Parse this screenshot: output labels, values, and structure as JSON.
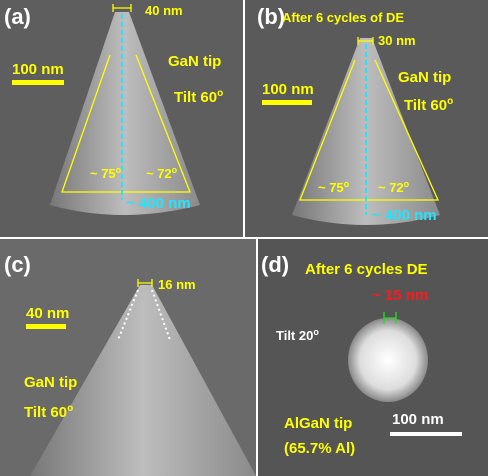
{
  "panels": [
    {
      "label": "(a)",
      "scale_bar": "100 nm",
      "tip_width": "40 nm",
      "material": "GaN tip",
      "tilt": {
        "text": "Tilt 60",
        "sup": "o"
      },
      "angle_left": {
        "text": "~ 75",
        "sup": "o"
      },
      "angle_right": {
        "text": "~ 72",
        "sup": "o"
      },
      "height": "~ 400 nm"
    },
    {
      "label": "(b)",
      "caption": "After 6 cycles of DE",
      "scale_bar": "100 nm",
      "tip_width": "30 nm",
      "material": "GaN tip",
      "tilt": {
        "text": "Tilt 60",
        "sup": "o"
      },
      "angle_left": {
        "text": "~ 75",
        "sup": "o"
      },
      "angle_right": {
        "text": "~ 72",
        "sup": "o"
      },
      "height": "~ 400 nm"
    },
    {
      "label": "(c)",
      "scale_bar": "40 nm",
      "tip_width": "16 nm",
      "material": "GaN tip",
      "tilt": {
        "text": "Tilt 60",
        "sup": "o"
      }
    },
    {
      "label": "(d)",
      "caption": "After 6 cycles DE",
      "tip_width": "~ 15 nm",
      "tilt": {
        "text": "Tilt 20",
        "sup": "o"
      },
      "material": "AlGaN tip",
      "composition": "(65.7% Al)",
      "scale_bar": "100 nm"
    }
  ]
}
